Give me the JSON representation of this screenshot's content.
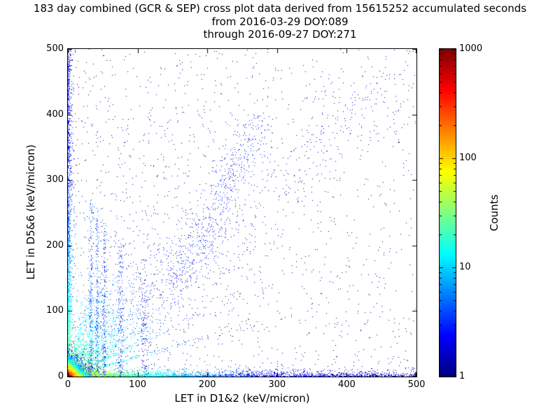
{
  "chart_data": {
    "type": "scatter",
    "title": "183 day combined (GCR & SEP) cross plot data derived from 15615252 accumulated seconds",
    "subtitle1": "from 2016-03-29 DOY:089",
    "subtitle2": "through 2016-09-27 DOY:271",
    "xlabel": "LET in D1&2 (keV/micron)",
    "ylabel": "LET in D5&6 (keV/micron)",
    "xlim": [
      0,
      500
    ],
    "ylim": [
      0,
      500
    ],
    "x_ticks": [
      0,
      100,
      200,
      300,
      400,
      500
    ],
    "y_ticks": [
      0,
      100,
      200,
      300,
      400,
      500
    ],
    "grid": false,
    "background": "#ffffff",
    "text_color": "#000000",
    "colorbar": {
      "label": "Counts",
      "scale": "log",
      "min": 1,
      "max": 1000,
      "ticks": [
        1,
        10,
        100,
        1000
      ],
      "colormap": "jet",
      "colormap_stops": [
        "#000080",
        "#0000ff",
        "#00ffff",
        "#80ff80",
        "#ffff00",
        "#ff0000",
        "#800000"
      ]
    },
    "distribution": {
      "description": "Density clusters approximating the LET cross-plot point cloud; counts per bin span 1 (dark blue) to ~1000 (red) on a log color scale, with a hot core at the origin, bright bands hugging both axes, faint rays fanning from the origin, vertical stripe artifacts near x=30-110, a diagonal correlation band, and sparse single-count points over the full plane.",
      "seed": 20160329,
      "clusters": [
        {
          "type": "uniform",
          "n": 1500,
          "xpow": 1.25,
          "ypow": 1.1,
          "d": 1
        },
        {
          "type": "diagseg",
          "n": 450,
          "x1": 20,
          "y1": 20,
          "x2": 480,
          "y2": 470,
          "spread": 30,
          "d": 2
        },
        {
          "type": "diagseg",
          "n": 650,
          "x1": 150,
          "y1": 130,
          "x2": 275,
          "y2": 390,
          "spread": 16,
          "d": 3
        },
        {
          "type": "vstripe",
          "n": 300,
          "x": 33,
          "sx": 1.5,
          "ymax": 270,
          "pow": 1.6,
          "d": 4
        },
        {
          "type": "vstripe",
          "n": 250,
          "x": 42,
          "sx": 1.5,
          "ymax": 260,
          "pow": 1.6,
          "d": 4
        },
        {
          "type": "vstripe",
          "n": 210,
          "x": 52,
          "sx": 1.8,
          "ymax": 240,
          "pow": 1.6,
          "d": 3
        },
        {
          "type": "vstripe",
          "n": 190,
          "x": 75,
          "sx": 2.4,
          "ymax": 210,
          "pow": 1.5,
          "d": 3
        },
        {
          "type": "vstripe",
          "n": 150,
          "x": 110,
          "sx": 3.0,
          "ymax": 180,
          "pow": 1.4,
          "d": 2
        },
        {
          "type": "rays",
          "n": 2400,
          "slopes": [
            0.3,
            0.5,
            0.72,
            1.0,
            1.35,
            1.85,
            2.6,
            3.8
          ],
          "L": 75,
          "jitter": 0.05,
          "d0": 35,
          "decay": 70
        },
        {
          "type": "bandy",
          "n": 1700,
          "pow": 2.0,
          "ymax": 500,
          "sx": 2.2,
          "d0": 40,
          "decay": 90
        },
        {
          "type": "bandx",
          "n": 3200,
          "pow": 2.2,
          "xmax": 500,
          "sy": 3.2,
          "d0": 70,
          "decay": 70
        },
        {
          "type": "blob",
          "n": 5200,
          "sx": 7,
          "sy": 7,
          "peak": 650
        }
      ]
    }
  }
}
